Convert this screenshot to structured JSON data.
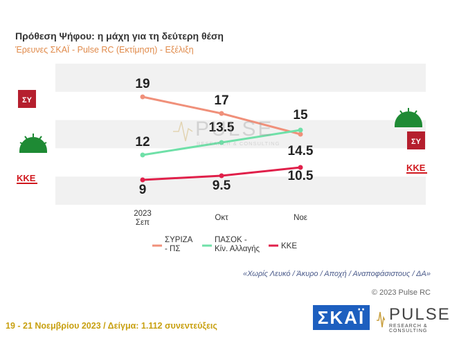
{
  "title": "Πρόθεση Ψήφου: η μάχη για τη δεύτερη θέση",
  "subtitle": "Έρευνες ΣΚΑΪ - Pulse RC    (Εκτίμηση) - Εξέλιξη",
  "note": "«Χωρίς Λευκό / Άκυρο / Αποχή / Αναποφάσιστους / ΔΑ»",
  "copyright": "© 2023 Pulse RC",
  "footer": "19 - 21  Νοεμβρίου  2023  /  Δείγμα:  1.112 συνεντεύξεις",
  "logos": {
    "skai": "ΣΚΑΪ",
    "pulse": "PULSE",
    "pulse_sub": "RESEARCH & CONSULTING",
    "watermark": "PULSE",
    "watermark_sub": "RESEARCH & CONSULTING",
    "kke_badge": "ΚΚΕ",
    "syriza_badge": "ΣΥ"
  },
  "chart_data": {
    "type": "line",
    "categories": [
      "2023 Σεπ",
      "Οκτ",
      "Νοε"
    ],
    "series": [
      {
        "name": "ΣΥΡΙΖΑ - ΠΣ",
        "color": "#f0907a",
        "values": [
          19,
          17,
          14.5
        ],
        "labels": [
          "19",
          "17",
          "14.5"
        ]
      },
      {
        "name": "ΠΑΣΟΚ - Κίν. Αλλαγής",
        "color": "#6fe0a8",
        "values": [
          12,
          13.5,
          15
        ],
        "labels": [
          "12",
          "13.5",
          "15"
        ]
      },
      {
        "name": "ΚΚΕ",
        "color": "#e0204a",
        "values": [
          9,
          9.5,
          10.5
        ],
        "labels": [
          "9",
          "9.5",
          "10.5"
        ]
      }
    ],
    "ylim": [
      6,
      23
    ],
    "grid": true,
    "legend": "bottom"
  }
}
